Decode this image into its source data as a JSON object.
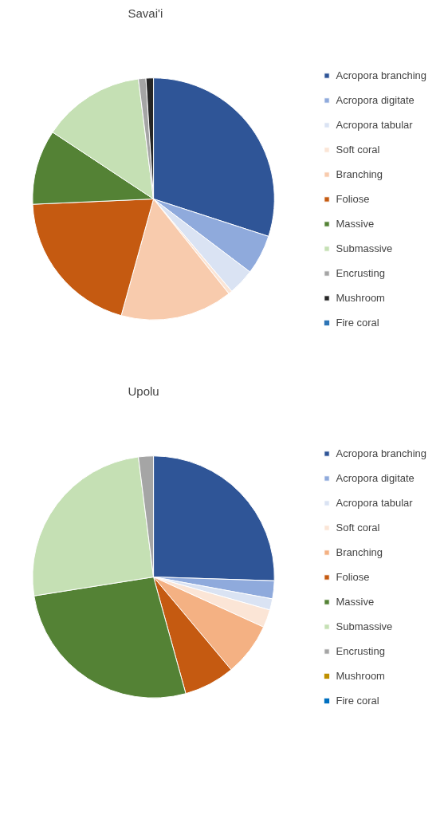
{
  "chart_data": [
    {
      "type": "pie",
      "title": "Savai'i",
      "legend": "right",
      "categories": [
        "Acropora branching",
        "Acropora digitate",
        "Acropora tabular",
        "Soft coral",
        "Branching",
        "Foliose",
        "Massive",
        "Submassive",
        "Encrusting",
        "Mushroom",
        "Fire coral"
      ],
      "values": [
        30,
        5.3,
        3.5,
        0.5,
        15,
        20,
        10,
        13.7,
        1,
        1,
        0
      ],
      "colors": [
        "#2f5597",
        "#8faadc",
        "#dae3f3",
        "#fbe5d6",
        "#f8cbad",
        "#c55a11",
        "#548235",
        "#c5e0b4",
        "#a5a5a5",
        "#262626",
        "#2e75b6"
      ]
    },
    {
      "type": "pie",
      "title": "Upolu",
      "legend": "right",
      "categories": [
        "Acropora branching",
        "Acropora digitate",
        "Acropora tabular",
        "Soft coral",
        "Branching",
        "Foliose",
        "Massive",
        "Submassive",
        "Encrusting",
        "Mushroom",
        "Fire coral"
      ],
      "values": [
        25.5,
        2.4,
        1.5,
        2.4,
        7.1,
        6.8,
        26.8,
        25.5,
        2,
        0,
        0
      ],
      "colors": [
        "#2f5597",
        "#8faadc",
        "#dae3f3",
        "#fbe5d6",
        "#f4b183",
        "#c55a11",
        "#548235",
        "#c5e0b4",
        "#a5a5a5",
        "#bf9000",
        "#0070c0"
      ]
    }
  ]
}
